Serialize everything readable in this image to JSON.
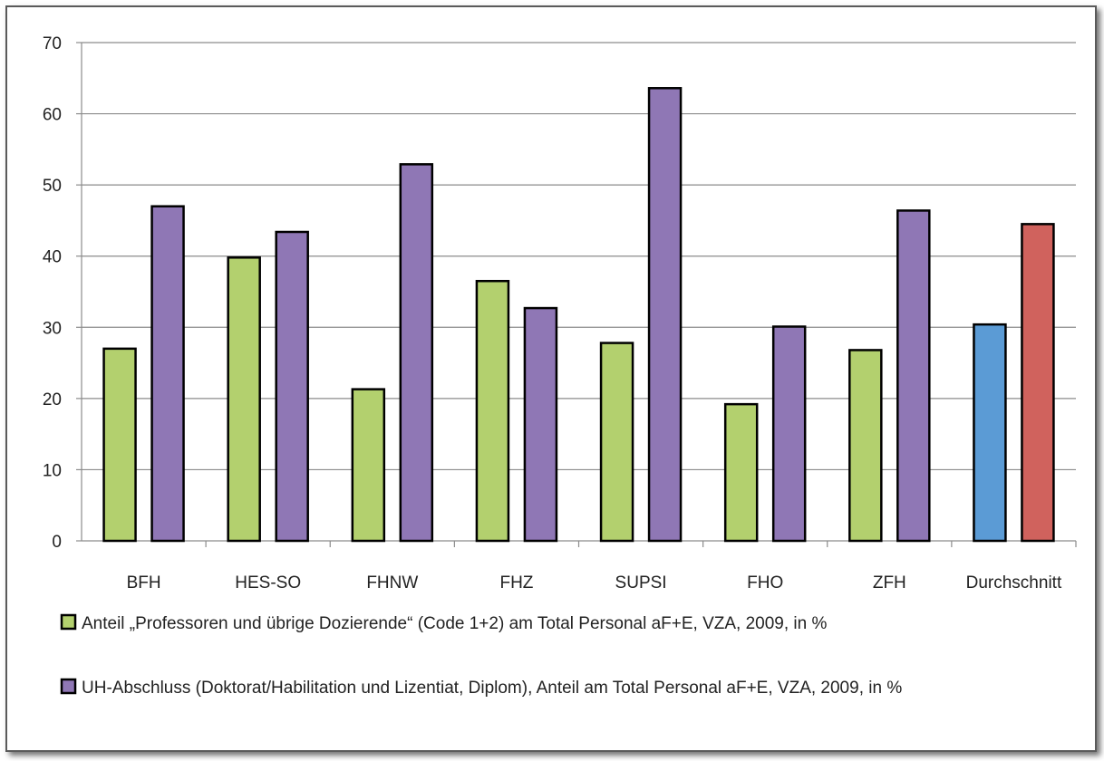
{
  "chart_data": {
    "type": "bar",
    "categories": [
      "BFH",
      "HES-SO",
      "FHNW",
      "FHZ",
      "SUPSI",
      "FHO",
      "ZFH",
      "Durchschnitt"
    ],
    "series": [
      {
        "name": "Anteil „Professoren und übrige Dozierende“ (Code 1+2) am Total Personal aF+E, VZA, 2009, in %",
        "values": [
          27,
          39.8,
          21.3,
          36.5,
          27.8,
          19.2,
          26.8,
          30.4
        ],
        "color": "#b3d06e"
      },
      {
        "name": "UH-Abschluss (Doktorat/Habilitation und Lizentiat, Diplom), Anteil am Total Personal aF+E, VZA, 2009, in %",
        "values": [
          47,
          43.4,
          52.9,
          32.7,
          63.6,
          30.1,
          46.4,
          44.5
        ],
        "color": "#8f77b5"
      }
    ],
    "average_colors": [
      "#5b9bd5",
      "#d0625d"
    ],
    "y_ticks": [
      "0",
      "10",
      "20",
      "30",
      "40",
      "50",
      "60",
      "70"
    ],
    "ylim": [
      0,
      70
    ],
    "grid": true,
    "legend_position": "bottom",
    "title": "",
    "xlabel": "",
    "ylabel": ""
  }
}
